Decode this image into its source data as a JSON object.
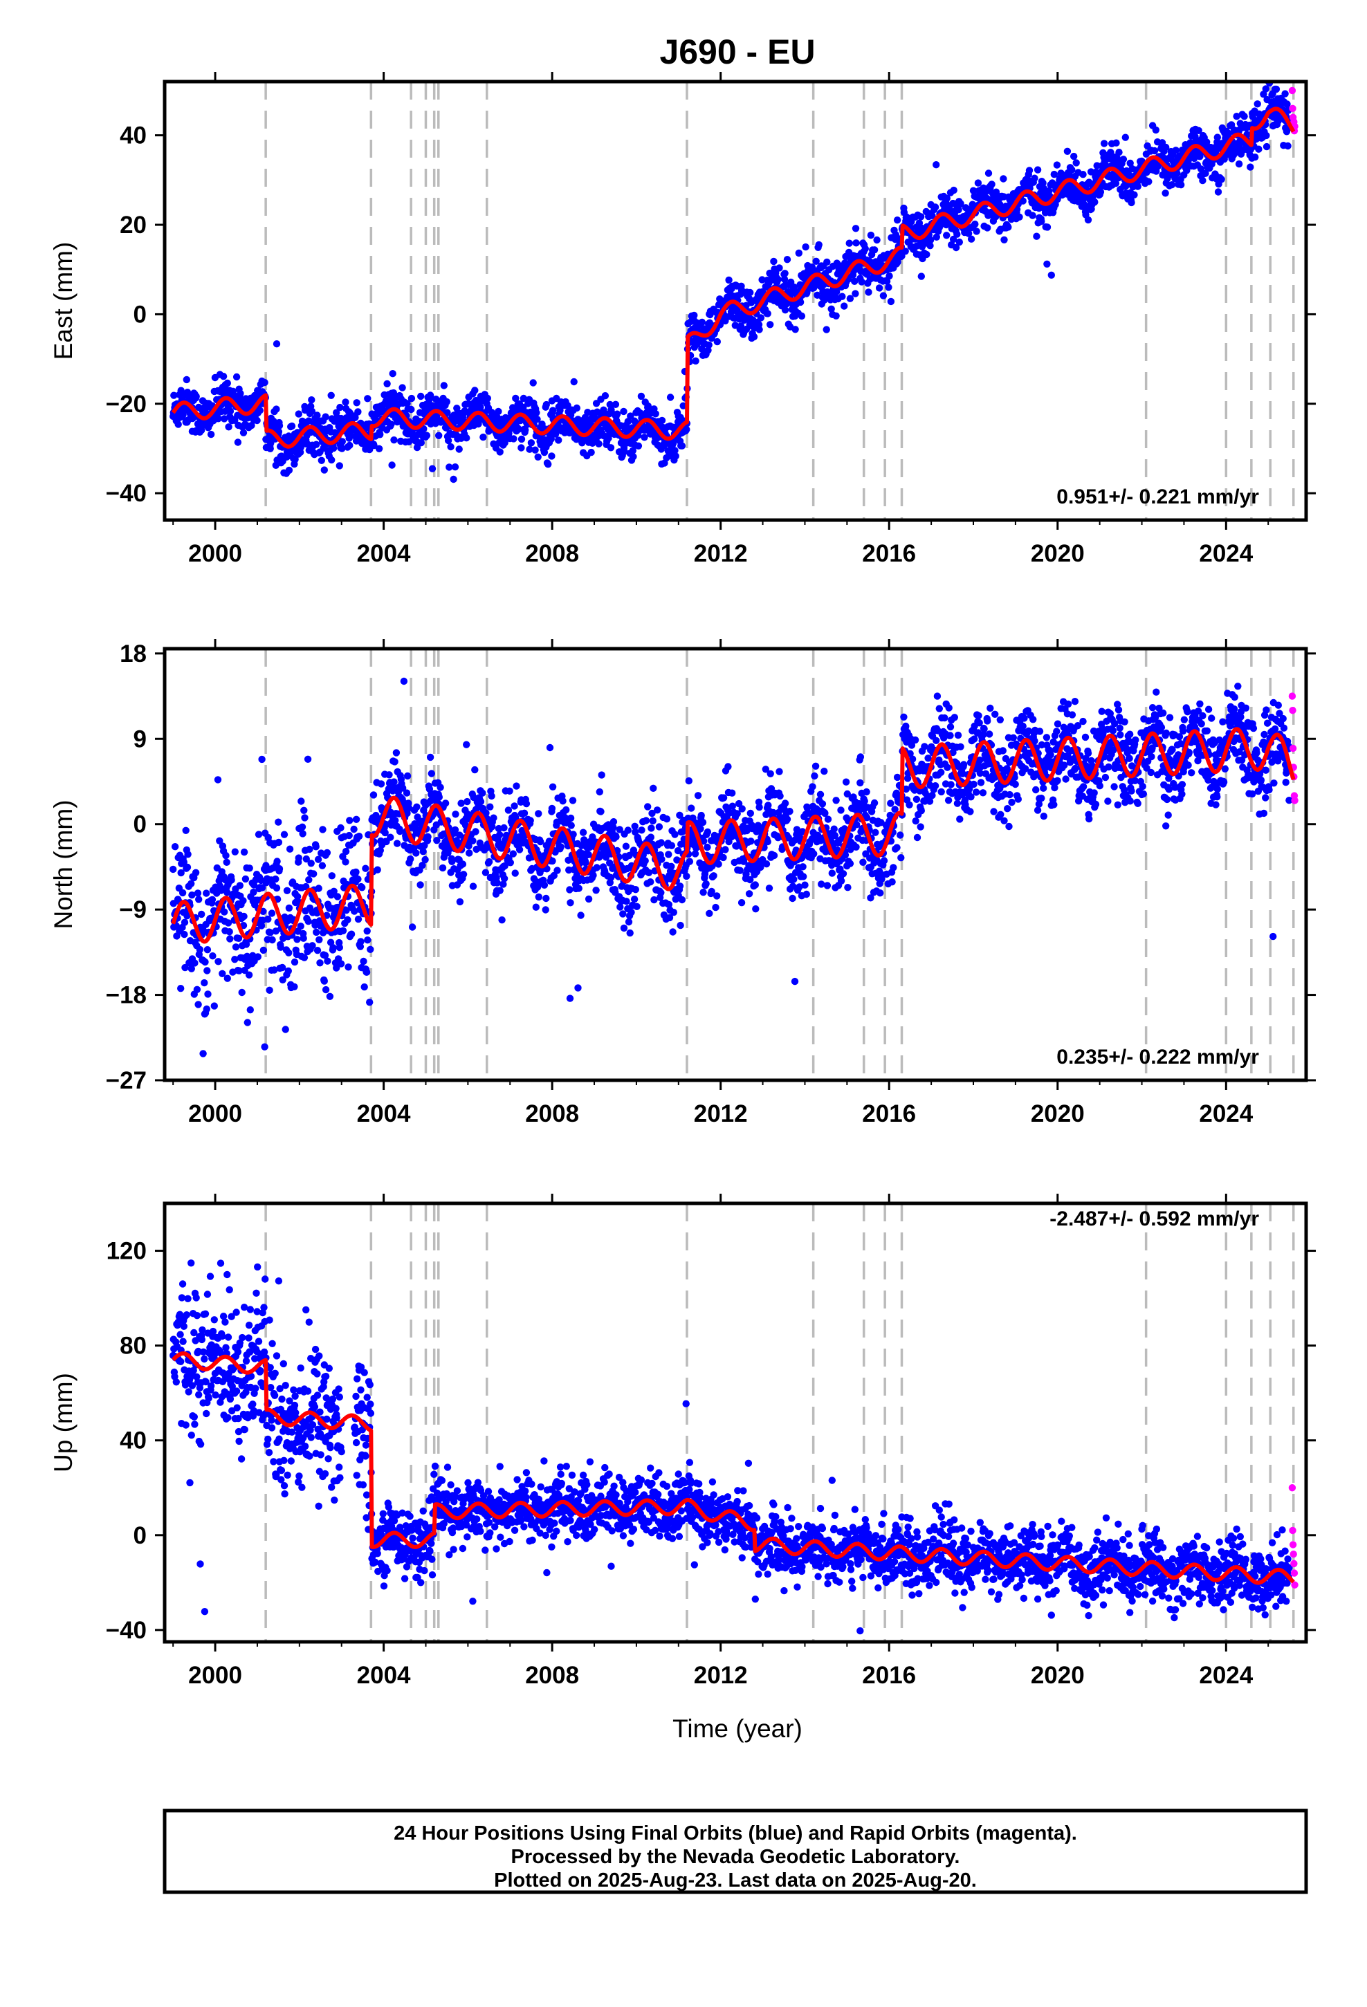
{
  "title": "J690 - EU",
  "xlabel": "Time (year)",
  "colors": {
    "final": "#0000ff",
    "rapid": "#ff00ff",
    "model": "#ff0000",
    "event": "#bbbbbb"
  },
  "caption": [
    "24 Hour Positions Using Final Orbits (blue) and Rapid Orbits (magenta).",
    "Processed by the Nevada Geodetic Laboratory.",
    "Plotted on 2025-Aug-23. Last data on 2025-Aug-20."
  ],
  "chart_data": [
    {
      "type": "scatter",
      "component": "east",
      "ylabel": "East (mm)",
      "rate": "0.951+/- 0.221 mm/yr",
      "xlim": [
        1998.8,
        2025.9
      ],
      "ylim": [
        -46,
        52
      ],
      "x_ticks": [
        2000,
        2004,
        2008,
        2012,
        2016,
        2020,
        2024
      ],
      "y_ticks": [
        -40,
        -20,
        0,
        20,
        40
      ],
      "grid": false,
      "event_lines": [
        2001.2,
        2003.7,
        2004.65,
        2005.0,
        2005.2,
        2005.3,
        2006.45,
        2011.2,
        2014.2,
        2015.4,
        2015.9,
        2016.3,
        2022.1,
        2024.0,
        2024.6,
        2025.05,
        2025.6
      ],
      "model": {
        "anchors": [
          [
            1999.0,
            -22
          ],
          [
            2001.0,
            -20
          ],
          [
            2001.2,
            -20
          ],
          [
            2001.22,
            -28
          ],
          [
            2003.7,
            -26
          ],
          [
            2003.72,
            -23
          ],
          [
            2011.2,
            -26
          ],
          [
            2011.22,
            -7
          ],
          [
            2012.0,
            0
          ],
          [
            2016.3,
            13
          ],
          [
            2016.32,
            18
          ],
          [
            2024.6,
            39
          ],
          [
            2024.62,
            43
          ],
          [
            2025.0,
            45
          ],
          [
            2025.6,
            42
          ]
        ],
        "annual_amplitude": 2.0
      },
      "final_orbits": {
        "x_range": [
          1999.0,
          2025.5
        ],
        "noise_mm": 2.6
      },
      "rapid_orbits": {
        "x": [
          2025.57,
          2025.58,
          2025.59,
          2025.6,
          2025.61,
          2025.62,
          2025.63
        ],
        "y": [
          50,
          46,
          44,
          42,
          43,
          41,
          42
        ]
      }
    },
    {
      "type": "scatter",
      "component": "north",
      "ylabel": "North (mm)",
      "rate": "0.235+/- 0.222 mm/yr",
      "xlim": [
        1998.8,
        2025.9
      ],
      "ylim": [
        -27,
        18.5
      ],
      "x_ticks": [
        2000,
        2004,
        2008,
        2012,
        2016,
        2020,
        2024
      ],
      "y_ticks": [
        -27,
        -18,
        -9,
        0,
        9,
        18
      ],
      "grid": false,
      "event_lines": [
        2001.2,
        2003.7,
        2004.65,
        2005.0,
        2005.2,
        2005.3,
        2006.45,
        2011.2,
        2014.2,
        2015.4,
        2015.9,
        2016.3,
        2022.1,
        2024.0,
        2024.6,
        2025.05,
        2025.6
      ],
      "model": {
        "anchors": [
          [
            1999.0,
            -10.5
          ],
          [
            2003.7,
            -8.5
          ],
          [
            2003.72,
            1
          ],
          [
            2011.2,
            -5
          ],
          [
            2011.22,
            -2
          ],
          [
            2016.3,
            -1
          ],
          [
            2016.32,
            6
          ],
          [
            2025.0,
            8
          ],
          [
            2025.6,
            6
          ]
        ],
        "annual_amplitude": 2.2
      },
      "final_orbits": {
        "x_range": [
          1999.0,
          2025.5
        ],
        "noise_mm": 2.3
      },
      "rapid_orbits": {
        "x": [
          2025.57,
          2025.58,
          2025.59,
          2025.6,
          2025.61,
          2025.62,
          2025.63
        ],
        "y": [
          13.5,
          12,
          8,
          6,
          5,
          3,
          2.5
        ]
      }
    },
    {
      "type": "scatter",
      "component": "up",
      "ylabel": "Up (mm)",
      "rate": "-2.487+/- 0.592 mm/yr",
      "xlim": [
        1998.8,
        2025.9
      ],
      "ylim": [
        -45,
        140
      ],
      "x_ticks": [
        2000,
        2004,
        2008,
        2012,
        2016,
        2020,
        2024
      ],
      "y_ticks": [
        -40,
        0,
        40,
        80,
        120
      ],
      "grid": false,
      "event_lines": [
        2001.2,
        2003.7,
        2004.65,
        2005.0,
        2005.2,
        2005.3,
        2006.45,
        2011.2,
        2014.2,
        2015.4,
        2015.9,
        2016.3,
        2022.1,
        2024.0,
        2024.6,
        2025.05,
        2025.6
      ],
      "model": {
        "anchors": [
          [
            1999.0,
            74
          ],
          [
            2001.2,
            71
          ],
          [
            2001.22,
            50
          ],
          [
            2003.7,
            47
          ],
          [
            2003.72,
            -2
          ],
          [
            2005.2,
            -2
          ],
          [
            2005.22,
            10
          ],
          [
            2011.2,
            12
          ],
          [
            2012.0,
            8
          ],
          [
            2012.8,
            5
          ],
          [
            2012.82,
            -4
          ],
          [
            2025.6,
            -18
          ]
        ],
        "annual_amplitude": 3.0
      },
      "final_orbits": {
        "x_range": [
          1999.0,
          2025.5
        ],
        "noise_mm": 6.5,
        "gap": [
          2003.0,
          2003.3
        ],
        "early_noise_mm": 16
      },
      "rapid_orbits": {
        "x": [
          2025.57,
          2025.58,
          2025.59,
          2025.6,
          2025.61,
          2025.62,
          2025.63
        ],
        "y": [
          20,
          2,
          -4,
          -8,
          -12,
          -16,
          -21
        ]
      }
    }
  ]
}
